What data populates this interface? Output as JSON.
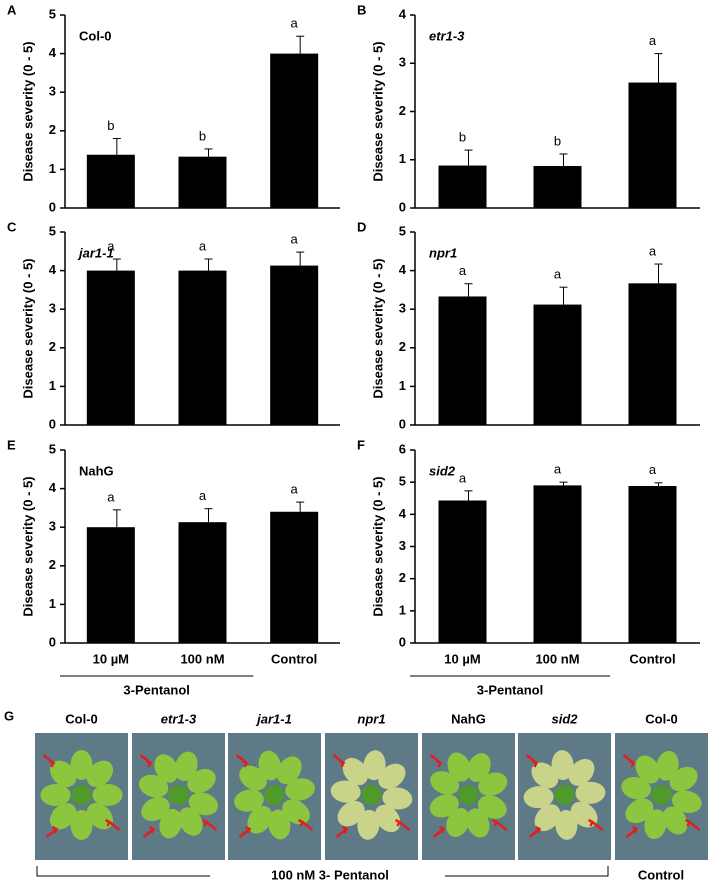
{
  "chart_data": [
    {
      "type": "bar",
      "panel": "A",
      "title": "Col-0",
      "title_italic": false,
      "ylabel": "Disease severity (0 - 5)",
      "color": "#000000",
      "values": [
        1.38,
        1.33,
        4.0
      ],
      "errors": [
        0.42,
        0.2,
        0.45
      ],
      "annotations": [
        "b",
        "b",
        "a"
      ],
      "ylim": [
        0,
        5
      ],
      "yticks": [
        0,
        1,
        2,
        3,
        4,
        5
      ]
    },
    {
      "type": "bar",
      "panel": "B",
      "title": "etr1-3",
      "title_italic": true,
      "ylabel": "Disease severity (0 - 5)",
      "color": "#000000",
      "values": [
        0.88,
        0.87,
        2.6
      ],
      "errors": [
        0.32,
        0.25,
        0.6
      ],
      "annotations": [
        "b",
        "b",
        "a"
      ],
      "ylim": [
        0,
        4
      ],
      "yticks": [
        0,
        1,
        2,
        3,
        4
      ]
    },
    {
      "type": "bar",
      "panel": "C",
      "title": "jar1-1",
      "title_italic": true,
      "ylabel": "Disease severity (0 - 5)",
      "color": "#000000",
      "values": [
        4.0,
        4.0,
        4.13
      ],
      "errors": [
        0.3,
        0.3,
        0.35
      ],
      "annotations": [
        "a",
        "a",
        "a"
      ],
      "ylim": [
        0,
        5
      ],
      "yticks": [
        0,
        1,
        2,
        3,
        4,
        5
      ]
    },
    {
      "type": "bar",
      "panel": "D",
      "title": "npr1",
      "title_italic": true,
      "ylabel": "Disease severity (0 - 5)",
      "color": "#000000",
      "values": [
        3.33,
        3.12,
        3.67
      ],
      "errors": [
        0.33,
        0.45,
        0.5
      ],
      "annotations": [
        "a",
        "a",
        "a"
      ],
      "ylim": [
        0,
        5
      ],
      "yticks": [
        0,
        1,
        2,
        3,
        4,
        5
      ]
    },
    {
      "type": "bar",
      "panel": "E",
      "title": "NahG",
      "title_italic": false,
      "ylabel": "Disease severity (0 - 5)",
      "color": "#000000",
      "categories": [
        "10 µM",
        "100 nM",
        "Control"
      ],
      "group_label": "3-Pentanol",
      "values": [
        3.0,
        3.13,
        3.4
      ],
      "errors": [
        0.45,
        0.35,
        0.25
      ],
      "annotations": [
        "a",
        "a",
        "a"
      ],
      "ylim": [
        0,
        5
      ],
      "yticks": [
        0,
        1,
        2,
        3,
        4,
        5
      ]
    },
    {
      "type": "bar",
      "panel": "F",
      "title": "sid2",
      "title_italic": true,
      "ylabel": "Disease severity (0 - 5)",
      "color": "#000000",
      "categories": [
        "10 µM",
        "100 nM",
        "Control"
      ],
      "group_label": "3-Pentanol",
      "values": [
        4.43,
        4.9,
        4.88
      ],
      "errors": [
        0.3,
        0.1,
        0.1
      ],
      "annotations": [
        "a",
        "a",
        "a"
      ],
      "ylim": [
        0,
        6
      ],
      "yticks": [
        0,
        1,
        2,
        3,
        4,
        5,
        6
      ]
    }
  ],
  "photo_panel": {
    "panel": "G",
    "labels": [
      "Col-0",
      "etr1-3",
      "jar1-1",
      "npr1",
      "NahG",
      "sid2",
      "Col-0"
    ],
    "labels_italic": [
      false,
      true,
      true,
      true,
      false,
      true,
      false
    ],
    "treatment_label": "100 nM 3- Pentanol",
    "control_label": "Control"
  }
}
